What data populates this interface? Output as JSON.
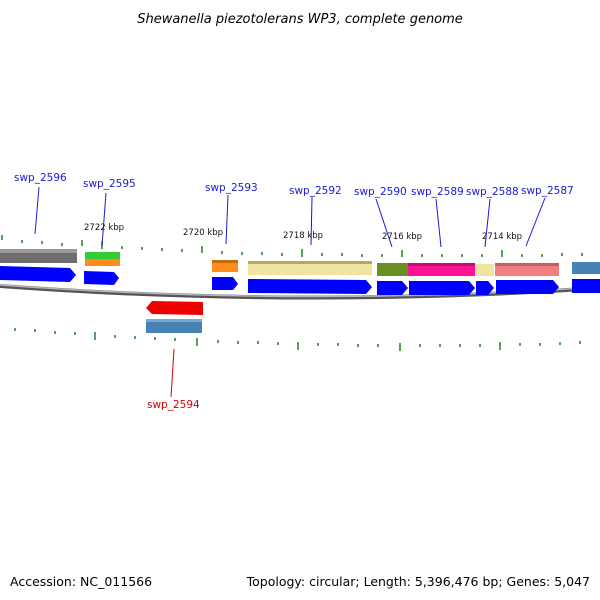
{
  "title": "Shewanella piezotolerans WP3, complete genome",
  "footer": {
    "accession": "Accession: NC_011566",
    "topology": "Topology: circular; Length: 5,396,476 bp; Genes: 5,047"
  },
  "kbp_labels": [
    "2722 kbp",
    "2720 kbp",
    "2718 kbp",
    "2716 kbp",
    "2714 kbp"
  ],
  "gene_labels_forward": [
    "swp_2596",
    "swp_2595",
    "swp_2593",
    "swp_2592",
    "swp_2590",
    "swp_2589",
    "swp_2588",
    "swp_2587"
  ],
  "gene_labels_reverse": [
    "swp_2594"
  ],
  "colors": {
    "forward_label": "#1a1ad6",
    "reverse_label": "#d60000",
    "cds": "#0000ff",
    "tick": "#2e8b2e",
    "backbone": "#7a7a7a"
  }
}
